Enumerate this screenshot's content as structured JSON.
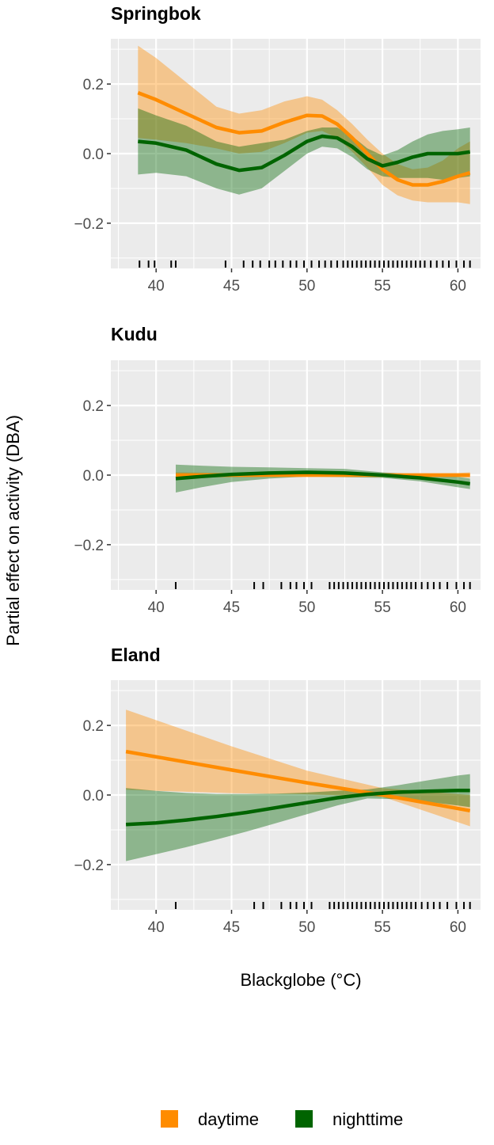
{
  "chart_data": {
    "type": "line",
    "xlabel": "Blackglobe (°C)",
    "ylabel": "Partial effect on activity (DBA)",
    "xlim": [
      37.0,
      61.5
    ],
    "ylim": [
      -0.33,
      0.33
    ],
    "x_ticks": [
      40,
      45,
      50,
      55,
      60
    ],
    "y_ticks": [
      -0.2,
      0.0,
      0.2
    ],
    "y_tick_labels": [
      "−0.2",
      "0.0",
      "0.2"
    ],
    "grid": true,
    "legend_position": "bottom",
    "legend": [
      {
        "name": "daytime",
        "color": "#FF8C00"
      },
      {
        "name": "nighttime",
        "color": "#006400"
      }
    ],
    "panels": [
      {
        "title": "Springbok",
        "series": [
          {
            "name": "daytime",
            "color": "#FF8C00",
            "x": [
              38.8,
              40,
              42,
              44,
              45.5,
              47,
              48.5,
              50,
              51,
              52,
              53,
              54,
              55,
              56,
              57,
              58,
              59,
              60,
              60.8
            ],
            "y": [
              0.175,
              0.155,
              0.115,
              0.075,
              0.06,
              0.065,
              0.09,
              0.11,
              0.108,
              0.085,
              0.045,
              0.0,
              -0.045,
              -0.075,
              -0.09,
              -0.09,
              -0.08,
              -0.065,
              -0.055
            ],
            "lower": [
              0.045,
              0.04,
              0.03,
              0.015,
              0.0,
              0.005,
              0.03,
              0.06,
              0.065,
              0.045,
              0.005,
              -0.04,
              -0.09,
              -0.12,
              -0.135,
              -0.14,
              -0.14,
              -0.14,
              -0.145
            ],
            "upper": [
              0.31,
              0.275,
              0.205,
              0.135,
              0.115,
              0.125,
              0.15,
              0.165,
              0.155,
              0.125,
              0.085,
              0.04,
              0.0,
              -0.03,
              -0.045,
              -0.04,
              -0.02,
              0.015,
              0.035
            ]
          },
          {
            "name": "nighttime",
            "color": "#006400",
            "x": [
              38.8,
              40,
              42,
              44,
              45.5,
              47,
              48.5,
              50,
              51,
              52,
              53,
              54,
              55,
              56,
              57,
              58,
              59,
              60,
              60.8
            ],
            "y": [
              0.035,
              0.03,
              0.01,
              -0.03,
              -0.048,
              -0.04,
              -0.005,
              0.035,
              0.05,
              0.045,
              0.02,
              -0.015,
              -0.035,
              -0.025,
              -0.01,
              0.0,
              0.0,
              0.0,
              0.005
            ],
            "lower": [
              -0.06,
              -0.055,
              -0.065,
              -0.1,
              -0.118,
              -0.1,
              -0.05,
              0.0,
              0.02,
              0.015,
              -0.01,
              -0.045,
              -0.065,
              -0.07,
              -0.07,
              -0.07,
              -0.075,
              -0.07,
              -0.065
            ],
            "upper": [
              0.13,
              0.11,
              0.08,
              0.035,
              0.02,
              0.03,
              0.04,
              0.065,
              0.075,
              0.075,
              0.05,
              0.015,
              -0.005,
              0.01,
              0.035,
              0.055,
              0.065,
              0.07,
              0.075
            ]
          }
        ],
        "rug": [
          38.9,
          39.5,
          39.9,
          41.0,
          41.3,
          44.6,
          45.8,
          46.4,
          46.9,
          47.5,
          47.9,
          48.4,
          48.9,
          49.3,
          49.8,
          50.3,
          50.8,
          51.2,
          51.6,
          52.0,
          52.4,
          52.7,
          53.0,
          53.3,
          53.6,
          53.9,
          54.2,
          54.5,
          54.8,
          55.1,
          55.4,
          55.7,
          56.0,
          56.3,
          56.6,
          56.9,
          57.2,
          57.5,
          57.8,
          58.2,
          58.6,
          59.0,
          59.4,
          59.9,
          60.4,
          60.8
        ]
      },
      {
        "title": "Kudu",
        "series": [
          {
            "name": "daytime",
            "color": "#FF8C00",
            "x": [
              41.3,
              45,
              50,
              55,
              60,
              60.8
            ],
            "y": [
              0.0,
              0.0,
              0.0,
              0.0,
              0.0,
              0.0
            ],
            "lower": [
              -0.008,
              -0.006,
              -0.005,
              -0.005,
              -0.006,
              -0.008
            ],
            "upper": [
              0.008,
              0.006,
              0.005,
              0.005,
              0.006,
              0.008
            ]
          },
          {
            "name": "nighttime",
            "color": "#006400",
            "x": [
              41.3,
              43,
              45,
              47.5,
              50,
              52.5,
              55,
              57.5,
              60,
              60.8
            ],
            "y": [
              -0.01,
              -0.004,
              0.002,
              0.006,
              0.008,
              0.006,
              0.0,
              -0.008,
              -0.02,
              -0.025
            ],
            "lower": [
              -0.05,
              -0.035,
              -0.02,
              -0.01,
              -0.004,
              -0.006,
              -0.008,
              -0.018,
              -0.035,
              -0.04
            ],
            "upper": [
              0.03,
              0.027,
              0.024,
              0.022,
              0.02,
              0.018,
              0.008,
              0.002,
              -0.005,
              -0.01
            ]
          }
        ],
        "rug": [
          41.3,
          46.5,
          47.1,
          48.3,
          48.9,
          49.3,
          49.8,
          50.3,
          51.5,
          51.8,
          52.1,
          52.4,
          52.7,
          53.0,
          53.3,
          53.6,
          53.9,
          54.2,
          54.5,
          54.8,
          55.1,
          55.4,
          55.7,
          56.0,
          56.3,
          56.6,
          56.9,
          57.2,
          57.6,
          58.0,
          58.4,
          58.8,
          59.3,
          59.9,
          60.4,
          60.8
        ]
      },
      {
        "title": "Eland",
        "series": [
          {
            "name": "daytime",
            "color": "#FF8C00",
            "x": [
              38.0,
              45,
              50,
              55,
              60.8
            ],
            "y": [
              0.125,
              0.072,
              0.035,
              0.0,
              -0.045
            ],
            "lower": [
              0.015,
              0.005,
              0.002,
              -0.005,
              -0.09
            ],
            "upper": [
              0.245,
              0.14,
              0.07,
              0.02,
              0.0
            ]
          },
          {
            "name": "nighttime",
            "color": "#006400",
            "x": [
              38.0,
              40,
              42,
              44,
              46,
              48,
              50,
              52,
              54,
              56,
              58,
              60,
              60.8
            ],
            "y": [
              -0.085,
              -0.08,
              -0.072,
              -0.062,
              -0.05,
              -0.036,
              -0.022,
              -0.008,
              0.002,
              0.008,
              0.011,
              0.013,
              0.013
            ],
            "lower": [
              -0.19,
              -0.17,
              -0.15,
              -0.128,
              -0.105,
              -0.08,
              -0.055,
              -0.03,
              -0.01,
              -0.012,
              -0.02,
              -0.03,
              -0.035
            ],
            "upper": [
              0.02,
              0.012,
              0.006,
              0.003,
              0.003,
              0.004,
              0.007,
              0.012,
              0.016,
              0.028,
              0.042,
              0.056,
              0.06
            ]
          }
        ],
        "rug": [
          41.3,
          46.5,
          47.1,
          48.3,
          48.9,
          49.3,
          49.8,
          50.3,
          51.5,
          51.8,
          52.1,
          52.4,
          52.7,
          53.0,
          53.3,
          53.6,
          53.9,
          54.2,
          54.5,
          54.8,
          55.1,
          55.4,
          55.7,
          56.0,
          56.3,
          56.6,
          56.9,
          57.2,
          57.6,
          58.0,
          58.4,
          58.8,
          59.3,
          59.9,
          60.4,
          60.8
        ]
      }
    ]
  }
}
